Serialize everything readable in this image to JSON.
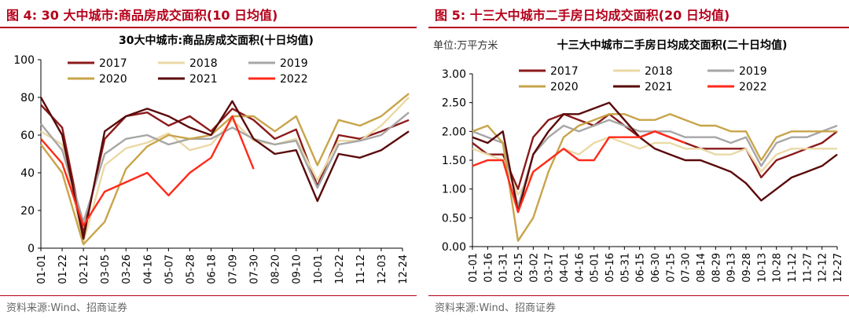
{
  "figures": [
    {
      "title": "图 4:  30 大中城市:商品房成交面积(10 日均值)",
      "source": "资料来源:Wind、招商证券"
    },
    {
      "title": "图 5:  十三大中城市二手房日均成交面积(20 日均值)",
      "source": "资料来源:Wind、招商证券"
    }
  ],
  "colors": {
    "2017": "#8b1a1a",
    "2018": "#ead9a6",
    "2019": "#a6a6a6",
    "2020": "#c8a44a",
    "2021": "#5a0a0a",
    "2022": "#ff2a1a"
  },
  "chart_data": [
    {
      "type": "line",
      "title": "30大中城市:商品房成交面积(十日均值)",
      "unit": "",
      "xlabel": "",
      "ylabel": "",
      "ylim": [
        0,
        100
      ],
      "yticks": [
        "0",
        "20",
        "40",
        "60",
        "80",
        "100"
      ],
      "xticks": [
        "01-01",
        "01-22",
        "02-12",
        "03-05",
        "03-26",
        "04-16",
        "05-07",
        "05-28",
        "06-18",
        "07-09",
        "07-30",
        "08-20",
        "09-10",
        "10-01",
        "10-22",
        "11-12",
        "12-03",
        "12-24"
      ],
      "legend_position": "top-left",
      "series": [
        {
          "name": "2017",
          "x": [
            0,
            1,
            2,
            3,
            4,
            5,
            6,
            7,
            8,
            9,
            10,
            11,
            12,
            13,
            14,
            15,
            16,
            17.3
          ],
          "values": [
            76,
            64,
            8,
            58,
            70,
            72,
            65,
            70,
            62,
            74,
            68,
            58,
            63,
            33,
            60,
            58,
            62,
            68
          ]
        },
        {
          "name": "2018",
          "x": [
            0,
            1,
            2,
            3,
            4,
            5,
            6,
            7,
            8,
            9,
            10,
            11,
            12,
            13,
            14,
            15,
            16,
            17.3
          ],
          "values": [
            62,
            55,
            3,
            44,
            53,
            56,
            61,
            52,
            55,
            68,
            57,
            55,
            58,
            36,
            57,
            57,
            65,
            80
          ]
        },
        {
          "name": "2019",
          "x": [
            0,
            1,
            2,
            3,
            4,
            5,
            6,
            7,
            8,
            9,
            10,
            11,
            12,
            13,
            14,
            15,
            16,
            17.3
          ],
          "values": [
            66,
            52,
            14,
            50,
            58,
            60,
            55,
            58,
            58,
            64,
            58,
            55,
            57,
            32,
            55,
            57,
            60,
            72
          ]
        },
        {
          "name": "2020",
          "x": [
            0,
            1,
            2,
            3,
            4,
            5,
            6,
            7,
            8,
            9,
            10,
            11,
            12,
            13,
            14,
            15,
            16,
            17.3
          ],
          "values": [
            55,
            40,
            2,
            14,
            42,
            54,
            60,
            58,
            60,
            70,
            70,
            62,
            70,
            44,
            68,
            65,
            70,
            82
          ]
        },
        {
          "name": "2021",
          "x": [
            0,
            1,
            2,
            3,
            4,
            5,
            6,
            7,
            8,
            9,
            10,
            11,
            12,
            13,
            14,
            15,
            16,
            17.3
          ],
          "values": [
            80,
            60,
            5,
            62,
            70,
            74,
            70,
            64,
            60,
            78,
            58,
            50,
            52,
            25,
            50,
            48,
            52,
            62
          ]
        },
        {
          "name": "2022",
          "x": [
            0,
            1,
            2,
            3,
            4,
            5,
            6,
            7,
            8,
            9,
            10,
            11,
            12,
            13,
            14,
            15,
            16,
            17.3
          ],
          "values": [
            58,
            45,
            12,
            30,
            35,
            40,
            28,
            40,
            48,
            70,
            42,
            null,
            null,
            null,
            null,
            null,
            null,
            null
          ]
        }
      ]
    },
    {
      "type": "line",
      "title": "十三大中城市二手房日均成交面积(二十日均值)",
      "unit": "单位:万平方米",
      "xlabel": "",
      "ylabel": "",
      "ylim": [
        0,
        3
      ],
      "yticks": [
        "0.00",
        "0.50",
        "1.00",
        "1.50",
        "2.00",
        "2.50",
        "3.00"
      ],
      "xticks": [
        "01-01",
        "01-16",
        "01-31",
        "02-15",
        "03-02",
        "03-17",
        "04-01",
        "04-16",
        "05-01",
        "05-16",
        "05-31",
        "06-15",
        "06-30",
        "07-15",
        "07-30",
        "08-14",
        "08-29",
        "09-13",
        "09-28",
        "10-13",
        "10-28",
        "11-12",
        "11-27",
        "12-12",
        "12-27"
      ],
      "legend_position": "top-left",
      "series": [
        {
          "name": "2017",
          "x": [
            0,
            1,
            2,
            3,
            4,
            5,
            6,
            7,
            8,
            9,
            10,
            11,
            12,
            13,
            14,
            15,
            16,
            17,
            18,
            19,
            20,
            21,
            22,
            23,
            24
          ],
          "values": [
            1.8,
            1.6,
            1.6,
            1.0,
            1.9,
            2.2,
            2.3,
            2.2,
            2.1,
            2.3,
            2.1,
            1.9,
            2.0,
            1.9,
            1.8,
            1.7,
            1.7,
            1.7,
            1.7,
            1.2,
            1.5,
            1.6,
            1.7,
            1.8,
            2.0
          ]
        },
        {
          "name": "2018",
          "x": [
            0,
            1,
            2,
            3,
            4,
            5,
            6,
            7,
            8,
            9,
            10,
            11,
            12,
            13,
            14,
            15,
            16,
            17,
            18,
            19,
            20,
            21,
            22,
            23,
            24
          ],
          "values": [
            1.7,
            1.6,
            1.5,
            0.9,
            1.3,
            1.5,
            1.7,
            1.6,
            1.8,
            1.9,
            1.8,
            1.7,
            1.8,
            1.8,
            1.7,
            1.7,
            1.6,
            1.6,
            1.7,
            1.3,
            1.6,
            1.7,
            1.7,
            1.7,
            1.7
          ]
        },
        {
          "name": "2019",
          "x": [
            0,
            1,
            2,
            3,
            4,
            5,
            6,
            7,
            8,
            9,
            10,
            11,
            12,
            13,
            14,
            15,
            16,
            17,
            18,
            19,
            20,
            21,
            22,
            23,
            24
          ],
          "values": [
            2.0,
            1.9,
            1.8,
            0.7,
            1.6,
            1.9,
            2.1,
            2.0,
            2.1,
            2.2,
            2.1,
            2.0,
            2.0,
            2.0,
            1.9,
            1.9,
            1.9,
            1.8,
            1.9,
            1.4,
            1.8,
            1.9,
            1.9,
            2.0,
            2.1
          ]
        },
        {
          "name": "2020",
          "x": [
            0,
            1,
            2,
            3,
            4,
            5,
            6,
            7,
            8,
            9,
            10,
            11,
            12,
            13,
            14,
            15,
            16,
            17,
            18,
            19,
            20,
            21,
            22,
            23,
            24
          ],
          "values": [
            2.0,
            2.1,
            1.8,
            0.1,
            0.5,
            1.3,
            1.9,
            2.1,
            2.2,
            2.3,
            2.3,
            2.2,
            2.2,
            2.3,
            2.2,
            2.1,
            2.1,
            2.0,
            2.0,
            1.5,
            1.9,
            2.0,
            2.0,
            2.0,
            2.0
          ]
        },
        {
          "name": "2021",
          "x": [
            0,
            1,
            2,
            3,
            4,
            5,
            6,
            7,
            8,
            9,
            10,
            11,
            12,
            13,
            14,
            15,
            16,
            17,
            18,
            19,
            20,
            21,
            22,
            23,
            24
          ],
          "values": [
            1.9,
            1.8,
            2.0,
            0.6,
            1.6,
            2.0,
            2.3,
            2.3,
            2.4,
            2.5,
            2.2,
            1.9,
            1.7,
            1.6,
            1.5,
            1.5,
            1.4,
            1.3,
            1.1,
            0.8,
            1.0,
            1.2,
            1.3,
            1.4,
            1.6
          ]
        },
        {
          "name": "2022",
          "x": [
            0,
            1,
            2,
            3,
            4,
            5,
            6,
            7,
            8,
            9,
            10,
            11,
            12,
            13,
            14,
            15,
            16,
            17,
            18,
            19,
            20,
            21,
            22,
            23,
            24
          ],
          "values": [
            1.4,
            1.5,
            1.5,
            0.6,
            1.3,
            1.5,
            1.7,
            1.5,
            1.5,
            1.9,
            1.9,
            1.9,
            2.0,
            1.9,
            1.8,
            null,
            null,
            null,
            null,
            null,
            null,
            null,
            null,
            null,
            null
          ]
        }
      ]
    }
  ]
}
